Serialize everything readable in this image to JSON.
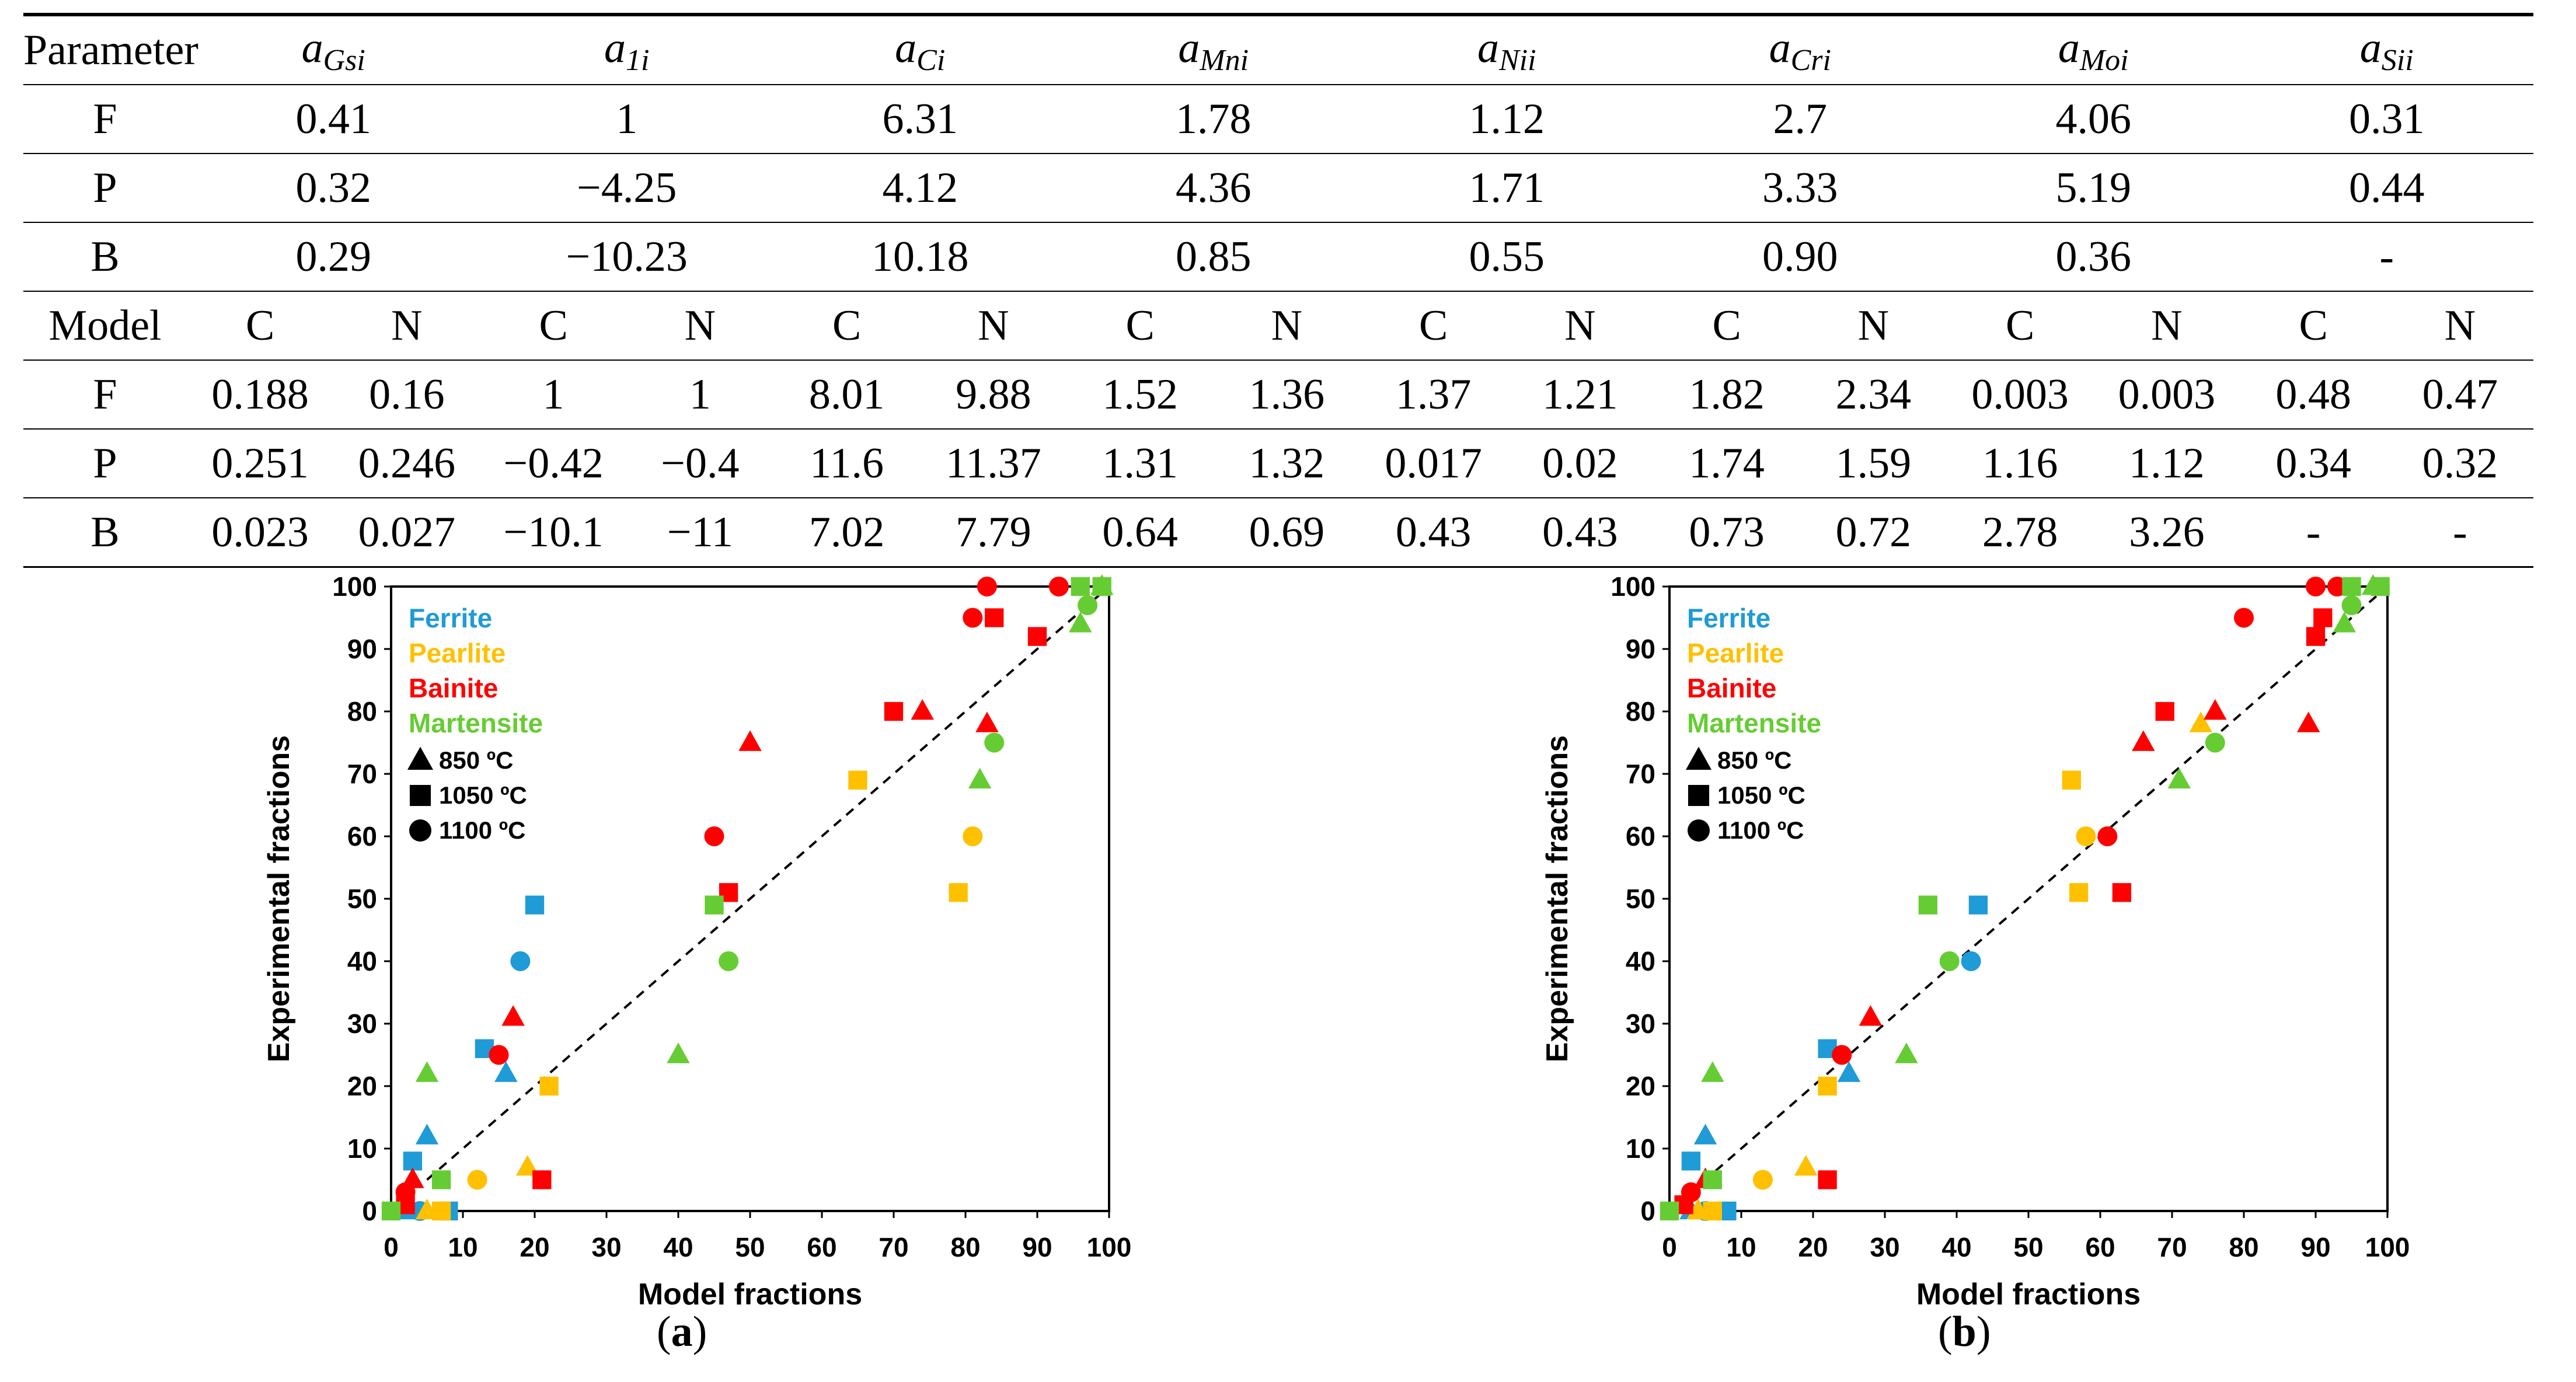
{
  "table": {
    "param_header": "Parameter",
    "param_symbols": [
      {
        "base": "a",
        "sub": "Gsi"
      },
      {
        "base": "a",
        "sub": "1i"
      },
      {
        "base": "a",
        "sub": "Ci"
      },
      {
        "base": "a",
        "sub": "Mni"
      },
      {
        "base": "a",
        "sub": "Nii"
      },
      {
        "base": "a",
        "sub": "Cri"
      },
      {
        "base": "a",
        "sub": "Moi"
      },
      {
        "base": "a",
        "sub": "Sii"
      }
    ],
    "param_rows": [
      {
        "label": "F",
        "values": [
          "0.41",
          "1",
          "6.31",
          "1.78",
          "1.12",
          "2.7",
          "4.06",
          "0.31"
        ]
      },
      {
        "label": "P",
        "values": [
          "0.32",
          "−4.25",
          "4.12",
          "4.36",
          "1.71",
          "3.33",
          "5.19",
          "0.44"
        ]
      },
      {
        "label": "B",
        "values": [
          "0.29",
          "−10.23",
          "10.18",
          "0.85",
          "0.55",
          "0.90",
          "0.36",
          "-"
        ]
      }
    ],
    "model_header": "Model",
    "model_subheaders": [
      "C",
      "N",
      "C",
      "N",
      "C",
      "N",
      "C",
      "N",
      "C",
      "N",
      "C",
      "N",
      "C",
      "N",
      "C",
      "N"
    ],
    "model_rows": [
      {
        "label": "F",
        "values": [
          "0.188",
          "0.16",
          "1",
          "1",
          "8.01",
          "9.88",
          "1.52",
          "1.36",
          "1.37",
          "1.21",
          "1.82",
          "2.34",
          "0.003",
          "0.003",
          "0.48",
          "0.47"
        ]
      },
      {
        "label": "P",
        "values": [
          "0.251",
          "0.246",
          "−0.42",
          "−0.4",
          "11.6",
          "11.37",
          "1.31",
          "1.32",
          "0.017",
          "0.02",
          "1.74",
          "1.59",
          "1.16",
          "1.12",
          "0.34",
          "0.32"
        ]
      },
      {
        "label": "B",
        "values": [
          "0.023",
          "0.027",
          "−10.1",
          "−11",
          "7.02",
          "7.79",
          "0.64",
          "0.69",
          "0.43",
          "0.43",
          "0.73",
          "0.72",
          "2.78",
          "3.26",
          "-",
          "-"
        ]
      }
    ]
  },
  "chart_data": [
    {
      "type": "scatter",
      "caption_letter": "a",
      "xlabel": "Model fractions",
      "ylabel": "Experimental fractions",
      "xlim": [
        0,
        100
      ],
      "ylim": [
        0,
        100
      ],
      "ticks": [
        "0",
        "10",
        "20",
        "30",
        "40",
        "50",
        "60",
        "70",
        "80",
        "90",
        "100"
      ],
      "legend_placement": "top-left",
      "legend_phases": [
        {
          "name": "Ferrite",
          "color": "#1f9bd7"
        },
        {
          "name": "Pearlite",
          "color": "#ffc000"
        },
        {
          "name": "Bainite",
          "color": "#ff0000"
        },
        {
          "name": "Martensite",
          "color": "#66cc33"
        }
      ],
      "legend_temps": [
        {
          "name": "850 ºC",
          "marker": "triangle"
        },
        {
          "name": "1050 ºC",
          "marker": "square"
        },
        {
          "name": "1100 ºC",
          "marker": "circle"
        }
      ],
      "diagonal": [
        [
          5,
          5
        ],
        [
          100,
          100
        ]
      ],
      "points": [
        {
          "x": 2,
          "y": 0,
          "phase": "Ferrite",
          "marker": "triangle"
        },
        {
          "x": 5,
          "y": 12,
          "phase": "Ferrite",
          "marker": "triangle"
        },
        {
          "x": 16,
          "y": 22,
          "phase": "Ferrite",
          "marker": "triangle"
        },
        {
          "x": 3,
          "y": 8,
          "phase": "Ferrite",
          "marker": "square"
        },
        {
          "x": 8,
          "y": 0,
          "phase": "Ferrite",
          "marker": "square"
        },
        {
          "x": 13,
          "y": 26,
          "phase": "Ferrite",
          "marker": "square"
        },
        {
          "x": 20,
          "y": 49,
          "phase": "Ferrite",
          "marker": "square"
        },
        {
          "x": 4,
          "y": 0,
          "phase": "Ferrite",
          "marker": "circle"
        },
        {
          "x": 18,
          "y": 40,
          "phase": "Ferrite",
          "marker": "circle"
        },
        {
          "x": 5,
          "y": 0,
          "phase": "Pearlite",
          "marker": "triangle"
        },
        {
          "x": 19,
          "y": 7,
          "phase": "Pearlite",
          "marker": "triangle"
        },
        {
          "x": 7,
          "y": 0,
          "phase": "Pearlite",
          "marker": "square"
        },
        {
          "x": 22,
          "y": 20,
          "phase": "Pearlite",
          "marker": "square"
        },
        {
          "x": 65,
          "y": 69,
          "phase": "Pearlite",
          "marker": "square"
        },
        {
          "x": 79,
          "y": 51,
          "phase": "Pearlite",
          "marker": "square"
        },
        {
          "x": 12,
          "y": 5,
          "phase": "Pearlite",
          "marker": "circle"
        },
        {
          "x": 81,
          "y": 60,
          "phase": "Pearlite",
          "marker": "circle"
        },
        {
          "x": 3,
          "y": 5,
          "phase": "Bainite",
          "marker": "triangle"
        },
        {
          "x": 17,
          "y": 31,
          "phase": "Bainite",
          "marker": "triangle"
        },
        {
          "x": 50,
          "y": 75,
          "phase": "Bainite",
          "marker": "triangle"
        },
        {
          "x": 74,
          "y": 80,
          "phase": "Bainite",
          "marker": "triangle"
        },
        {
          "x": 83,
          "y": 78,
          "phase": "Bainite",
          "marker": "triangle"
        },
        {
          "x": 2,
          "y": 1,
          "phase": "Bainite",
          "marker": "square"
        },
        {
          "x": 21,
          "y": 5,
          "phase": "Bainite",
          "marker": "square"
        },
        {
          "x": 47,
          "y": 51,
          "phase": "Bainite",
          "marker": "square"
        },
        {
          "x": 70,
          "y": 80,
          "phase": "Bainite",
          "marker": "square"
        },
        {
          "x": 84,
          "y": 95,
          "phase": "Bainite",
          "marker": "square"
        },
        {
          "x": 90,
          "y": 92,
          "phase": "Bainite",
          "marker": "square"
        },
        {
          "x": 2,
          "y": 3,
          "phase": "Bainite",
          "marker": "circle"
        },
        {
          "x": 15,
          "y": 25,
          "phase": "Bainite",
          "marker": "circle"
        },
        {
          "x": 45,
          "y": 60,
          "phase": "Bainite",
          "marker": "circle"
        },
        {
          "x": 81,
          "y": 95,
          "phase": "Bainite",
          "marker": "circle"
        },
        {
          "x": 83,
          "y": 100,
          "phase": "Bainite",
          "marker": "circle"
        },
        {
          "x": 93,
          "y": 100,
          "phase": "Bainite",
          "marker": "circle"
        },
        {
          "x": 5,
          "y": 22,
          "phase": "Martensite",
          "marker": "triangle"
        },
        {
          "x": 40,
          "y": 25,
          "phase": "Martensite",
          "marker": "triangle"
        },
        {
          "x": 82,
          "y": 69,
          "phase": "Martensite",
          "marker": "triangle"
        },
        {
          "x": 96,
          "y": 94,
          "phase": "Martensite",
          "marker": "triangle"
        },
        {
          "x": 99,
          "y": 100,
          "phase": "Martensite",
          "marker": "triangle"
        },
        {
          "x": 0,
          "y": 0,
          "phase": "Martensite",
          "marker": "square"
        },
        {
          "x": 7,
          "y": 5,
          "phase": "Martensite",
          "marker": "square"
        },
        {
          "x": 45,
          "y": 49,
          "phase": "Martensite",
          "marker": "square"
        },
        {
          "x": 96,
          "y": 100,
          "phase": "Martensite",
          "marker": "square"
        },
        {
          "x": 99,
          "y": 100,
          "phase": "Martensite",
          "marker": "square"
        },
        {
          "x": 47,
          "y": 40,
          "phase": "Martensite",
          "marker": "circle"
        },
        {
          "x": 84,
          "y": 75,
          "phase": "Martensite",
          "marker": "circle"
        },
        {
          "x": 97,
          "y": 97,
          "phase": "Martensite",
          "marker": "circle"
        }
      ]
    },
    {
      "type": "scatter",
      "caption_letter": "b",
      "xlabel": "Model fractions",
      "ylabel": "Experimental fractions",
      "xlim": [
        0,
        100
      ],
      "ylim": [
        0,
        100
      ],
      "ticks": [
        "0",
        "10",
        "20",
        "30",
        "40",
        "50",
        "60",
        "70",
        "80",
        "90",
        "100"
      ],
      "legend_placement": "top-left",
      "legend_phases": [
        {
          "name": "Ferrite",
          "color": "#1f9bd7"
        },
        {
          "name": "Pearlite",
          "color": "#ffc000"
        },
        {
          "name": "Bainite",
          "color": "#ff0000"
        },
        {
          "name": "Martensite",
          "color": "#66cc33"
        }
      ],
      "legend_temps": [
        {
          "name": "850 ºC",
          "marker": "triangle"
        },
        {
          "name": "1050 ºC",
          "marker": "square"
        },
        {
          "name": "1100 ºC",
          "marker": "circle"
        }
      ],
      "diagonal": [
        [
          3,
          3
        ],
        [
          100,
          100
        ]
      ],
      "points": [
        {
          "x": 3,
          "y": 0,
          "phase": "Ferrite",
          "marker": "triangle"
        },
        {
          "x": 5,
          "y": 12,
          "phase": "Ferrite",
          "marker": "triangle"
        },
        {
          "x": 25,
          "y": 22,
          "phase": "Ferrite",
          "marker": "triangle"
        },
        {
          "x": 3,
          "y": 8,
          "phase": "Ferrite",
          "marker": "square"
        },
        {
          "x": 8,
          "y": 0,
          "phase": "Ferrite",
          "marker": "square"
        },
        {
          "x": 22,
          "y": 26,
          "phase": "Ferrite",
          "marker": "square"
        },
        {
          "x": 43,
          "y": 49,
          "phase": "Ferrite",
          "marker": "square"
        },
        {
          "x": 5,
          "y": 0,
          "phase": "Ferrite",
          "marker": "circle"
        },
        {
          "x": 42,
          "y": 40,
          "phase": "Ferrite",
          "marker": "circle"
        },
        {
          "x": 4,
          "y": 0,
          "phase": "Pearlite",
          "marker": "triangle"
        },
        {
          "x": 19,
          "y": 7,
          "phase": "Pearlite",
          "marker": "triangle"
        },
        {
          "x": 74,
          "y": 78,
          "phase": "Pearlite",
          "marker": "triangle"
        },
        {
          "x": 6,
          "y": 0,
          "phase": "Pearlite",
          "marker": "square"
        },
        {
          "x": 22,
          "y": 20,
          "phase": "Pearlite",
          "marker": "square"
        },
        {
          "x": 56,
          "y": 69,
          "phase": "Pearlite",
          "marker": "square"
        },
        {
          "x": 57,
          "y": 51,
          "phase": "Pearlite",
          "marker": "square"
        },
        {
          "x": 13,
          "y": 5,
          "phase": "Pearlite",
          "marker": "circle"
        },
        {
          "x": 58,
          "y": 60,
          "phase": "Pearlite",
          "marker": "circle"
        },
        {
          "x": 5,
          "y": 5,
          "phase": "Bainite",
          "marker": "triangle"
        },
        {
          "x": 28,
          "y": 31,
          "phase": "Bainite",
          "marker": "triangle"
        },
        {
          "x": 66,
          "y": 75,
          "phase": "Bainite",
          "marker": "triangle"
        },
        {
          "x": 76,
          "y": 80,
          "phase": "Bainite",
          "marker": "triangle"
        },
        {
          "x": 89,
          "y": 78,
          "phase": "Bainite",
          "marker": "triangle"
        },
        {
          "x": 2,
          "y": 1,
          "phase": "Bainite",
          "marker": "square"
        },
        {
          "x": 22,
          "y": 5,
          "phase": "Bainite",
          "marker": "square"
        },
        {
          "x": 63,
          "y": 51,
          "phase": "Bainite",
          "marker": "square"
        },
        {
          "x": 69,
          "y": 80,
          "phase": "Bainite",
          "marker": "square"
        },
        {
          "x": 91,
          "y": 95,
          "phase": "Bainite",
          "marker": "square"
        },
        {
          "x": 90,
          "y": 92,
          "phase": "Bainite",
          "marker": "square"
        },
        {
          "x": 3,
          "y": 3,
          "phase": "Bainite",
          "marker": "circle"
        },
        {
          "x": 24,
          "y": 25,
          "phase": "Bainite",
          "marker": "circle"
        },
        {
          "x": 61,
          "y": 60,
          "phase": "Bainite",
          "marker": "circle"
        },
        {
          "x": 80,
          "y": 95,
          "phase": "Bainite",
          "marker": "circle"
        },
        {
          "x": 90,
          "y": 100,
          "phase": "Bainite",
          "marker": "circle"
        },
        {
          "x": 93,
          "y": 100,
          "phase": "Bainite",
          "marker": "circle"
        },
        {
          "x": 6,
          "y": 22,
          "phase": "Martensite",
          "marker": "triangle"
        },
        {
          "x": 33,
          "y": 25,
          "phase": "Martensite",
          "marker": "triangle"
        },
        {
          "x": 71,
          "y": 69,
          "phase": "Martensite",
          "marker": "triangle"
        },
        {
          "x": 94,
          "y": 94,
          "phase": "Martensite",
          "marker": "triangle"
        },
        {
          "x": 98,
          "y": 100,
          "phase": "Martensite",
          "marker": "triangle"
        },
        {
          "x": 0,
          "y": 0,
          "phase": "Martensite",
          "marker": "square"
        },
        {
          "x": 6,
          "y": 5,
          "phase": "Martensite",
          "marker": "square"
        },
        {
          "x": 36,
          "y": 49,
          "phase": "Martensite",
          "marker": "square"
        },
        {
          "x": 95,
          "y": 100,
          "phase": "Martensite",
          "marker": "square"
        },
        {
          "x": 99,
          "y": 100,
          "phase": "Martensite",
          "marker": "square"
        },
        {
          "x": 39,
          "y": 40,
          "phase": "Martensite",
          "marker": "circle"
        },
        {
          "x": 76,
          "y": 75,
          "phase": "Martensite",
          "marker": "circle"
        },
        {
          "x": 95,
          "y": 97,
          "phase": "Martensite",
          "marker": "circle"
        }
      ]
    }
  ]
}
